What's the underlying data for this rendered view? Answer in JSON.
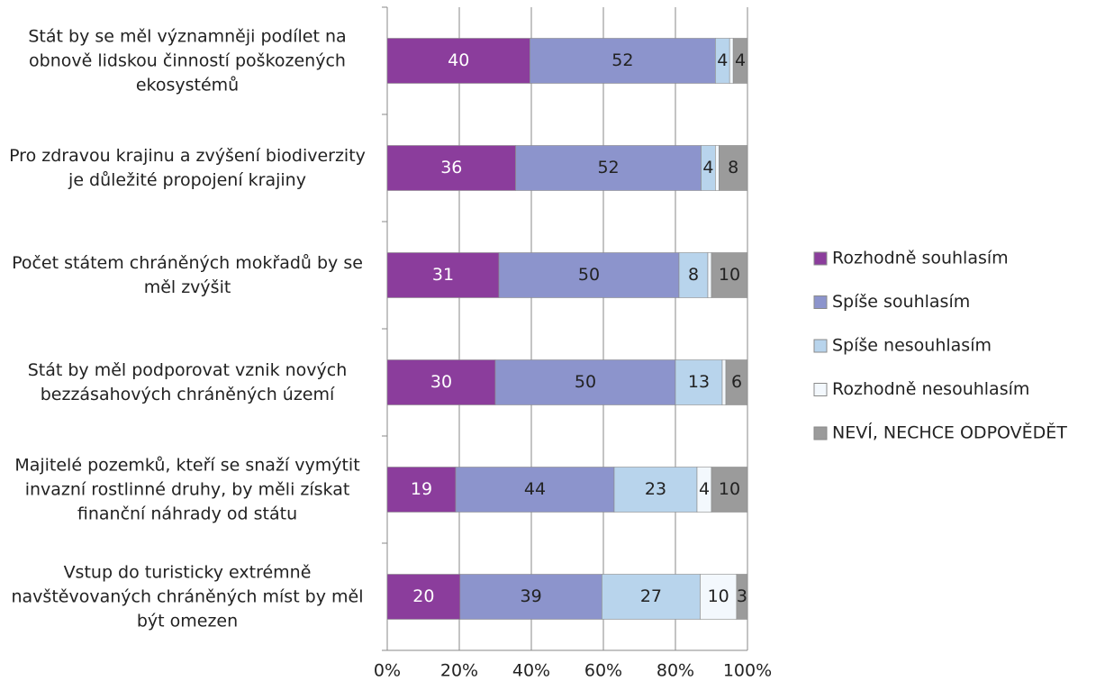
{
  "chart_data": {
    "type": "stacked_barh_percent",
    "categories": [
      "Stát by se měl významněji podílet na obnově lidskou činností poškozených ekosystémů",
      "Pro zdravou krajinu a zvýšení biodiverzity je důležité propojení krajiny",
      "Počet státem chráněných mokřadů by se měl zvýšit",
      "Stát by měl podporovat vznik nových bezzásahových chráněných území",
      "Majitelé pozemků, kteří se snaží vymýtit invazní rostlinné druhy, by měli získat finanční náhrady od státu",
      "Vstup do turisticky extrémně navštěvovaných chráněných míst by měl být omezen"
    ],
    "series": [
      {
        "name": "Rozhodně souhlasím",
        "color": "#8b3d9c",
        "values": [
          40,
          36,
          31,
          30,
          19,
          20
        ]
      },
      {
        "name": "Spíše souhlasím",
        "color": "#8c94cc",
        "values": [
          52,
          52,
          50,
          50,
          44,
          39
        ]
      },
      {
        "name": "Spíše nesouhlasím",
        "color": "#b8d4ec",
        "values": [
          4,
          4,
          8,
          13,
          23,
          27
        ]
      },
      {
        "name": "Rozhodně nesouhlasím",
        "color": "#f3f8fd",
        "values": [
          1,
          1,
          1,
          1,
          4,
          10
        ]
      },
      {
        "name": "NEVÍ, NECHCE ODPOVĚDĚT",
        "color": "#9b9b9b",
        "values": [
          4,
          8,
          10,
          6,
          10,
          3
        ]
      }
    ],
    "xlim": [
      0,
      100
    ],
    "xticks": [
      {
        "value": 0,
        "label": "0%"
      },
      {
        "value": 20,
        "label": "20%"
      },
      {
        "value": 40,
        "label": "40%"
      },
      {
        "value": 60,
        "label": "60%"
      },
      {
        "value": 80,
        "label": "80%"
      },
      {
        "value": 100,
        "label": "100%"
      }
    ],
    "grid": true,
    "legend": "right"
  }
}
